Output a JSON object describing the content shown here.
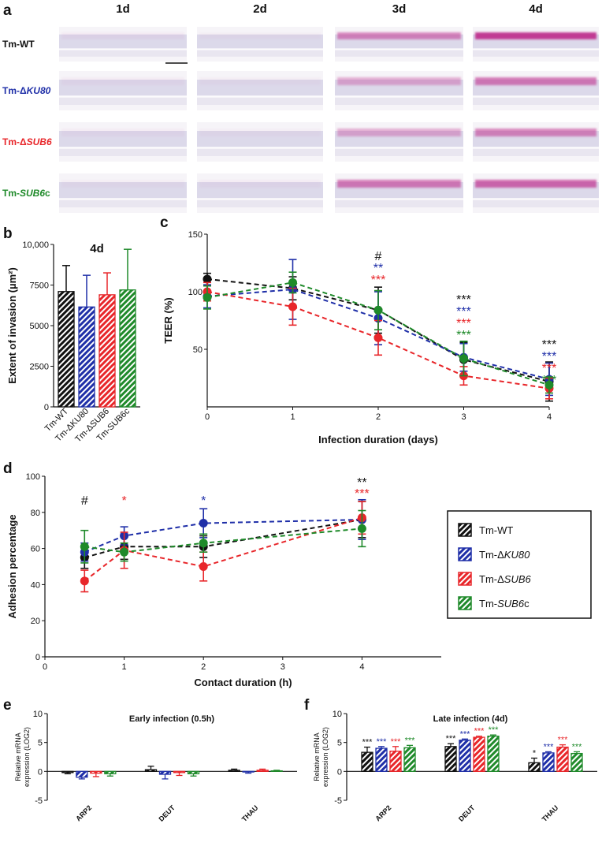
{
  "colors": {
    "wt": "#111111",
    "ku80": "#1f2fa8",
    "sub6": "#e8262a",
    "sub6c": "#1f8a2a",
    "stain_pink": "#c0308f",
    "tissue": "#d7d3e8"
  },
  "panels": {
    "a": "a",
    "b": "b",
    "c": "c",
    "d": "d",
    "e": "e",
    "f": "f"
  },
  "histology": {
    "columns": [
      "1d",
      "2d",
      "3d",
      "4d"
    ],
    "rows": [
      {
        "pre": "Tm-WT",
        "it": "",
        "post": "",
        "color": "#111111"
      },
      {
        "pre": "Tm-Δ",
        "it": "KU80",
        "post": "",
        "color": "#1f2fa8"
      },
      {
        "pre": "Tm-Δ",
        "it": "SUB6",
        "post": "",
        "color": "#e8262a"
      },
      {
        "pre": "Tm-",
        "it": "SUB6",
        "post": "c",
        "color": "#1f8a2a"
      }
    ],
    "stain": [
      [
        0.05,
        0.03,
        0.55,
        0.95
      ],
      [
        0.04,
        0.03,
        0.35,
        0.6
      ],
      [
        0.04,
        0.03,
        0.35,
        0.55
      ],
      [
        0.03,
        0.04,
        0.6,
        0.7
      ]
    ]
  },
  "legend": [
    {
      "pre": "Tm-WT",
      "it": "",
      "post": "",
      "color": "#111111"
    },
    {
      "pre": "Tm-Δ",
      "it": "KU80",
      "post": "",
      "color": "#1f2fa8"
    },
    {
      "pre": "Tm-Δ",
      "it": "SUB6",
      "post": "",
      "color": "#e8262a"
    },
    {
      "pre": "Tm-",
      "it": "SUB6",
      "post": "c",
      "color": "#1f8a2a"
    }
  ],
  "chart_data": [
    {
      "panel": "b",
      "type": "bar",
      "title": "4d",
      "ylabel": "Extent of invasion (µm²)",
      "ylim": [
        0,
        10000
      ],
      "yticks": [
        0,
        2500,
        5000,
        7500,
        10000
      ],
      "ytick_labels": [
        "0",
        "2500",
        "5000",
        "7500",
        "10,000"
      ],
      "categories": [
        "Tm-WT",
        "Tm-ΔKU80",
        "Tm-ΔSUB6",
        "Tm-SUB6c"
      ],
      "values": [
        7100,
        6150,
        6900,
        7200
      ],
      "errors": [
        1600,
        1950,
        1350,
        2500
      ]
    },
    {
      "panel": "c",
      "type": "line",
      "xlabel": "Infection duration (days)",
      "ylabel": "TEER (%)",
      "xlim": [
        0,
        4
      ],
      "ylim": [
        0,
        150
      ],
      "xticks": [
        0,
        1,
        2,
        3,
        4
      ],
      "yticks": [
        50,
        100,
        150
      ],
      "series": [
        {
          "name": "Tm-WT",
          "x": [
            0,
            1,
            2,
            3,
            4
          ],
          "y": [
            111,
            103,
            84,
            41,
            22
          ],
          "err": [
            5,
            10,
            20,
            15,
            17
          ]
        },
        {
          "name": "Tm-ΔKU80",
          "x": [
            0,
            1,
            2,
            3,
            4
          ],
          "y": [
            96,
            102,
            77,
            43,
            24
          ],
          "err": [
            10,
            26,
            23,
            12,
            14
          ]
        },
        {
          "name": "Tm-ΔSUB6",
          "x": [
            0,
            1,
            2,
            3,
            4
          ],
          "y": [
            100,
            87,
            60,
            27,
            16
          ],
          "err": [
            8,
            16,
            15,
            8,
            9
          ]
        },
        {
          "name": "Tm-SUB6c",
          "x": [
            0,
            1,
            2,
            3,
            4
          ],
          "y": [
            95,
            108,
            84,
            42,
            19
          ],
          "err": [
            10,
            9,
            17,
            15,
            7
          ]
        }
      ],
      "annotations": [
        {
          "x": 2,
          "lines": [
            {
              "text": "#",
              "series": 0
            },
            {
              "text": "**",
              "series": 1
            },
            {
              "text": "***",
              "series": 2
            }
          ]
        },
        {
          "x": 3,
          "lines": [
            {
              "text": "***",
              "series": 0
            },
            {
              "text": "***",
              "series": 1
            },
            {
              "text": "***",
              "series": 2
            },
            {
              "text": "***",
              "series": 3
            }
          ]
        },
        {
          "x": 4,
          "lines": [
            {
              "text": "***",
              "series": 0
            },
            {
              "text": "***",
              "series": 1
            },
            {
              "text": "***",
              "series": 2
            },
            {
              "text": "***",
              "series": 3
            }
          ]
        }
      ]
    },
    {
      "panel": "d",
      "type": "line",
      "xlabel": "Contact duration (h)",
      "ylabel": "Adhesion percentage",
      "xlim": [
        0,
        5
      ],
      "ylim": [
        0,
        100
      ],
      "xticks": [
        0,
        1,
        2,
        3,
        4
      ],
      "yticks": [
        0,
        20,
        40,
        60,
        80,
        100
      ],
      "series": [
        {
          "name": "Tm-WT",
          "x": [
            0.5,
            1,
            2,
            4
          ],
          "y": [
            55,
            61,
            61,
            76
          ],
          "err": [
            6,
            7,
            6,
            10
          ]
        },
        {
          "name": "Tm-ΔKU80",
          "x": [
            0.5,
            1,
            2,
            4
          ],
          "y": [
            58,
            67,
            74,
            76
          ],
          "err": [
            5,
            5,
            8,
            11
          ]
        },
        {
          "name": "Tm-ΔSUB6",
          "x": [
            0.5,
            1,
            2,
            4
          ],
          "y": [
            42,
            59,
            50,
            77
          ],
          "err": [
            6,
            10,
            8,
            9
          ]
        },
        {
          "name": "Tm-SUB6c",
          "x": [
            0.5,
            1,
            2,
            4
          ],
          "y": [
            61,
            58,
            63,
            71
          ],
          "err": [
            9,
            5,
            5,
            10
          ]
        }
      ],
      "annotations": [
        {
          "x": 0.5,
          "lines": [
            {
              "text": "#",
              "series": 0
            }
          ]
        },
        {
          "x": 1,
          "lines": [
            {
              "text": "*",
              "series": 2
            }
          ]
        },
        {
          "x": 2,
          "lines": [
            {
              "text": "*",
              "series": 1
            }
          ]
        },
        {
          "x": 4,
          "lines": [
            {
              "text": "**",
              "series": 0
            },
            {
              "text": "***",
              "series": 2
            }
          ]
        }
      ]
    },
    {
      "panel": "e",
      "type": "bar",
      "title": "Early infection (0.5h)",
      "ylabel": "Relative mRNA expression (LOG2)",
      "ylabel_lines": [
        "Relative mRNA",
        "expression (LOG2)"
      ],
      "ylim": [
        -5,
        10
      ],
      "yticks": [
        -5,
        0,
        5,
        10
      ],
      "categories": [
        "ARP2",
        "DEUT",
        "THAU"
      ],
      "series": [
        {
          "name": "Tm-WT",
          "values": [
            -0.2,
            0.3,
            0.2
          ],
          "err": [
            0.2,
            0.6,
            0.2
          ]
        },
        {
          "name": "Tm-ΔKU80",
          "values": [
            -1.0,
            -0.5,
            -0.1
          ],
          "err": [
            0.3,
            0.8,
            0.2
          ]
        },
        {
          "name": "Tm-ΔSUB6",
          "values": [
            -0.3,
            -0.2,
            0.2
          ],
          "err": [
            0.6,
            0.5,
            0.2
          ]
        },
        {
          "name": "Tm-SUB6c",
          "values": [
            -0.4,
            -0.4,
            0.1
          ],
          "err": [
            0.4,
            0.4,
            0.1
          ]
        }
      ],
      "sig": []
    },
    {
      "panel": "f",
      "type": "bar",
      "title": "Late infection (4d)",
      "ylabel": "Relative mRNA expression (LOG2)",
      "ylabel_lines": [
        "Relative mRNA",
        "expression (LOG2)"
      ],
      "ylim": [
        -5,
        10
      ],
      "yticks": [
        -5,
        0,
        5,
        10
      ],
      "categories": [
        "ARP2",
        "DEUT",
        "THAU"
      ],
      "series": [
        {
          "name": "Tm-WT",
          "values": [
            3.3,
            4.3,
            1.5
          ],
          "err": [
            0.9,
            0.5,
            0.8
          ]
        },
        {
          "name": "Tm-ΔKU80",
          "values": [
            4.0,
            5.4,
            3.2
          ],
          "err": [
            0.3,
            0.2,
            0.2
          ]
        },
        {
          "name": "Tm-ΔSUB6",
          "values": [
            3.5,
            5.9,
            4.2
          ],
          "err": [
            0.8,
            0.2,
            0.4
          ]
        },
        {
          "name": "Tm-SUB6c",
          "values": [
            4.1,
            6.1,
            3.1
          ],
          "err": [
            0.4,
            0.2,
            0.3
          ]
        }
      ],
      "sig": [
        [
          "***",
          "***",
          "***",
          "***"
        ],
        [
          "***",
          "***",
          "***",
          "***"
        ],
        [
          "*",
          "***",
          "***",
          "***"
        ]
      ]
    }
  ]
}
